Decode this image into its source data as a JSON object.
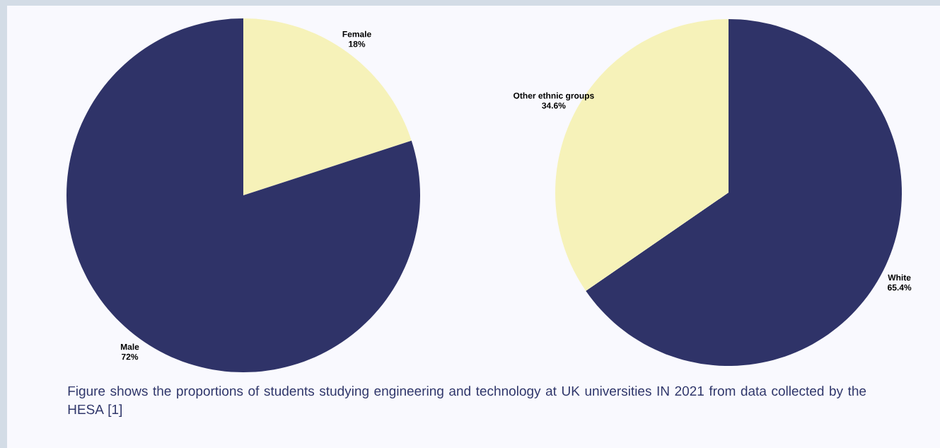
{
  "chart_data": [
    {
      "type": "pie",
      "categories": [
        "Female",
        "Male"
      ],
      "values": [
        18,
        72
      ],
      "value_labels": [
        "18%",
        "72%"
      ],
      "colors": [
        "#f6f2b9",
        "#2f3368"
      ],
      "annotations": [
        "Figure shows the proportions of students studying engineering and technology at UK universities IN 2021 from data collected by the HESA [1]"
      ]
    },
    {
      "type": "pie",
      "categories": [
        "White",
        "Other ethnic groups"
      ],
      "values": [
        65.4,
        34.6
      ],
      "value_labels": [
        "65.4%",
        "34.6%"
      ],
      "colors": [
        "#2f3368",
        "#f6f2b9"
      ]
    }
  ]
}
